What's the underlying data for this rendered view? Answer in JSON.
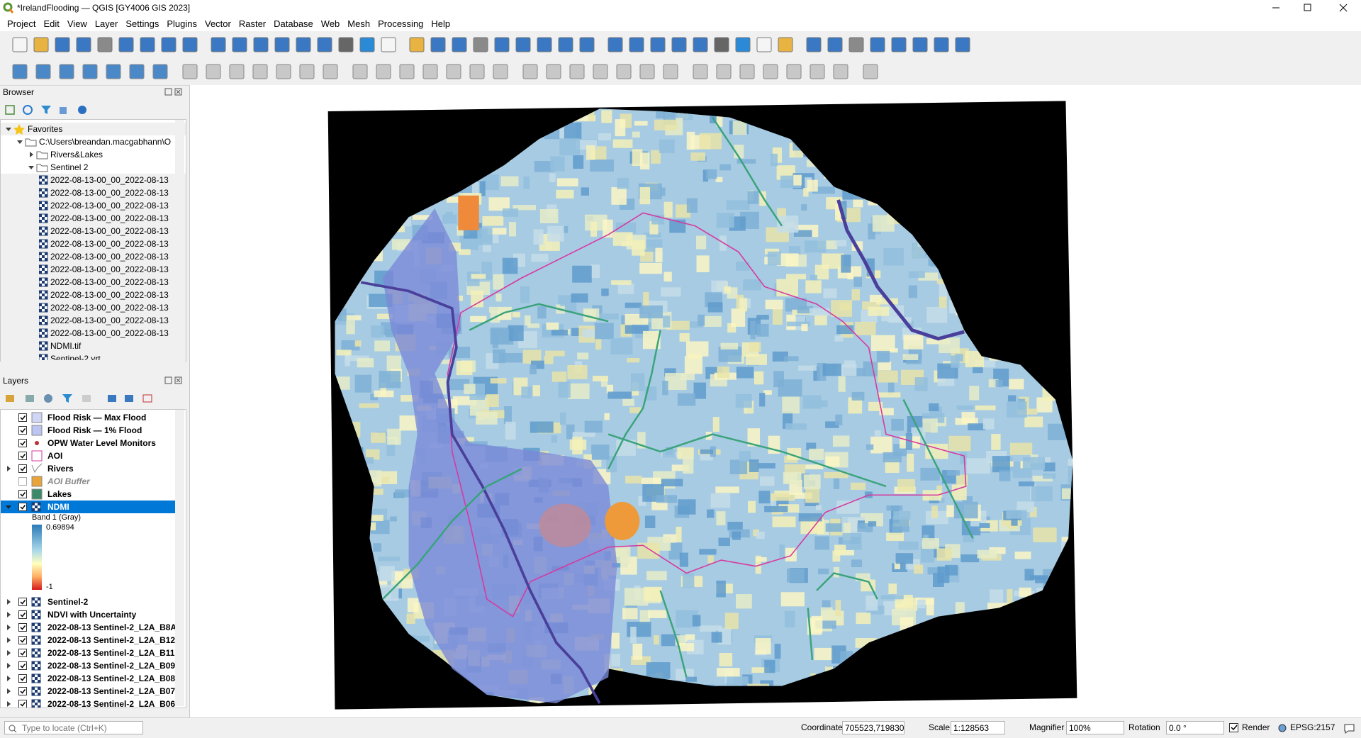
{
  "window": {
    "title": "*IrelandFlooding — QGIS [GY4006 GIS 2023]"
  },
  "menu": [
    "Project",
    "Edit",
    "View",
    "Layer",
    "Settings",
    "Plugins",
    "Vector",
    "Raster",
    "Database",
    "Web",
    "Mesh",
    "Processing",
    "Help"
  ],
  "browser": {
    "title": "Browser",
    "tree": [
      {
        "label": "Favorites",
        "children": [
          {
            "label": "C:\\Users\\breandan.macgabhann\\O",
            "children": [
              {
                "label": "Rivers&Lakes",
                "children": []
              },
              {
                "label": "Sentinel 2",
                "children": [
                  {
                    "label": "2022-08-13-00_00_2022-08-13"
                  },
                  {
                    "label": "2022-08-13-00_00_2022-08-13"
                  },
                  {
                    "label": "2022-08-13-00_00_2022-08-13"
                  },
                  {
                    "label": "2022-08-13-00_00_2022-08-13"
                  },
                  {
                    "label": "2022-08-13-00_00_2022-08-13"
                  },
                  {
                    "label": "2022-08-13-00_00_2022-08-13"
                  },
                  {
                    "label": "2022-08-13-00_00_2022-08-13"
                  },
                  {
                    "label": "2022-08-13-00_00_2022-08-13"
                  },
                  {
                    "label": "2022-08-13-00_00_2022-08-13"
                  },
                  {
                    "label": "2022-08-13-00_00_2022-08-13"
                  },
                  {
                    "label": "2022-08-13-00_00_2022-08-13"
                  },
                  {
                    "label": "2022-08-13-00_00_2022-08-13"
                  },
                  {
                    "label": "2022-08-13-00_00_2022-08-13"
                  },
                  {
                    "label": "NDMI.tif"
                  },
                  {
                    "label": "Sentinel-2.vrt"
                  }
                ]
              }
            ]
          }
        ]
      }
    ]
  },
  "layers": {
    "title": "Layers",
    "items": [
      {
        "label": "Flood Risk — Max Flood",
        "checked": true
      },
      {
        "label": "Flood Risk — 1% Flood",
        "checked": true
      },
      {
        "label": "OPW Water Level Monitors",
        "checked": true
      },
      {
        "label": "AOI",
        "checked": true
      },
      {
        "label": "Rivers",
        "checked": true
      },
      {
        "label": "AOI Buffer",
        "checked": false
      },
      {
        "label": "Lakes",
        "checked": true
      },
      {
        "label": "NDMI",
        "checked": true,
        "selected": true
      },
      {
        "label": "Sentinel-2",
        "checked": true
      },
      {
        "label": "NDVI with Uncertainty",
        "checked": true
      },
      {
        "label": "2022-08-13 Sentinel-2_L2A_B8A",
        "checked": true
      },
      {
        "label": "2022-08-13 Sentinel-2_L2A_B12",
        "checked": true
      },
      {
        "label": "2022-08-13 Sentinel-2_L2A_B11",
        "checked": true
      },
      {
        "label": "2022-08-13 Sentinel-2_L2A_B09",
        "checked": true
      },
      {
        "label": "2022-08-13 Sentinel-2_L2A_B08",
        "checked": true
      },
      {
        "label": "2022-08-13 Sentinel-2_L2A_B07",
        "checked": true
      },
      {
        "label": "2022-08-13 Sentinel-2_L2A_B06",
        "checked": true
      }
    ],
    "legend": {
      "band": "Band 1 (Gray)",
      "max": 0.69894,
      "min": -1
    }
  },
  "status": {
    "locate": "Type to locate (Ctrl+K)",
    "coordinate_label": "Coordinate",
    "coordinate": "705523,719830",
    "scale_label": "Scale",
    "scale": "1:128563",
    "magnifier_label": "Magnifier",
    "magnifier": "100%",
    "rotation_label": "Rotation",
    "rotation": "0.0 °",
    "render": "Render",
    "crs": "EPSG:2157"
  }
}
